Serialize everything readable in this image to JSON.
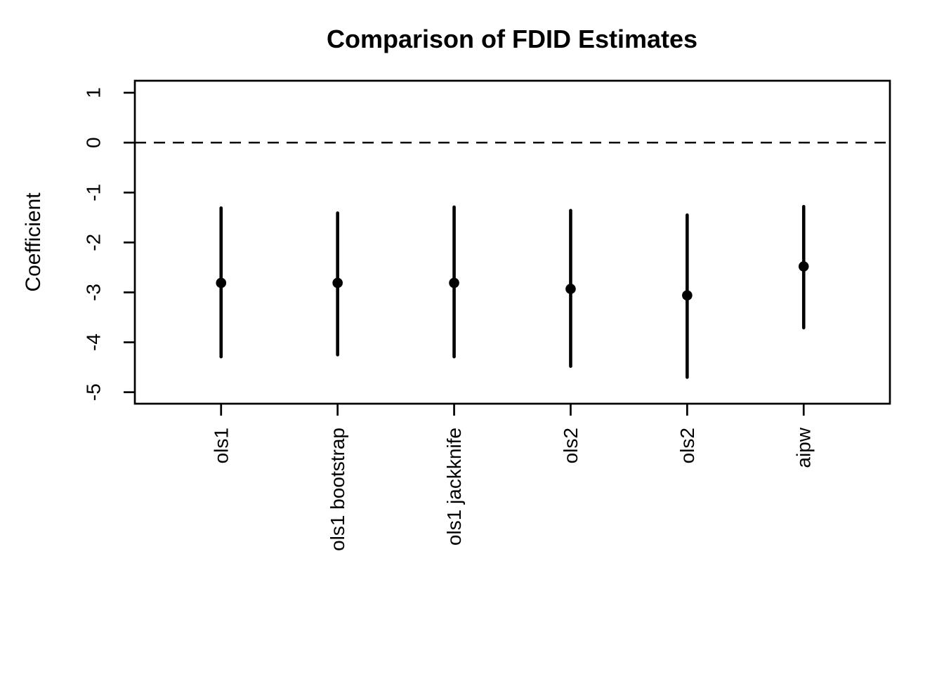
{
  "figure": {
    "background": "#ffffff"
  },
  "chart_data": {
    "type": "scatter",
    "subtype": "point-estimates-with-error-bars",
    "title": "Comparison of FDID Estimates",
    "xlabel": "",
    "ylabel": "Coefficient",
    "ylim": [
      -5.23,
      1.24
    ],
    "yticks": [
      1,
      0,
      -1,
      -2,
      -3,
      -4,
      -5
    ],
    "grid": false,
    "legend_position": "none",
    "reference_line": {
      "y": 0,
      "style": "dashed"
    },
    "categories": [
      "ols1",
      "ols1 bootstrap",
      "ols1 jackknife",
      "ols2",
      "ols2",
      "aipw"
    ],
    "series": [
      {
        "name": "estimate",
        "values": [
          -2.81,
          -2.81,
          -2.81,
          -2.93,
          -3.06,
          -2.48
        ]
      },
      {
        "name": "ci_lower",
        "values": [
          -4.29,
          -4.25,
          -4.29,
          -4.48,
          -4.7,
          -3.71
        ]
      },
      {
        "name": "ci_upper",
        "values": [
          -1.31,
          -1.41,
          -1.29,
          -1.36,
          -1.45,
          -1.28
        ]
      }
    ],
    "colors": {
      "points": "#000000",
      "lines": "#000000",
      "axis": "#000000",
      "background": "#ffffff"
    }
  }
}
